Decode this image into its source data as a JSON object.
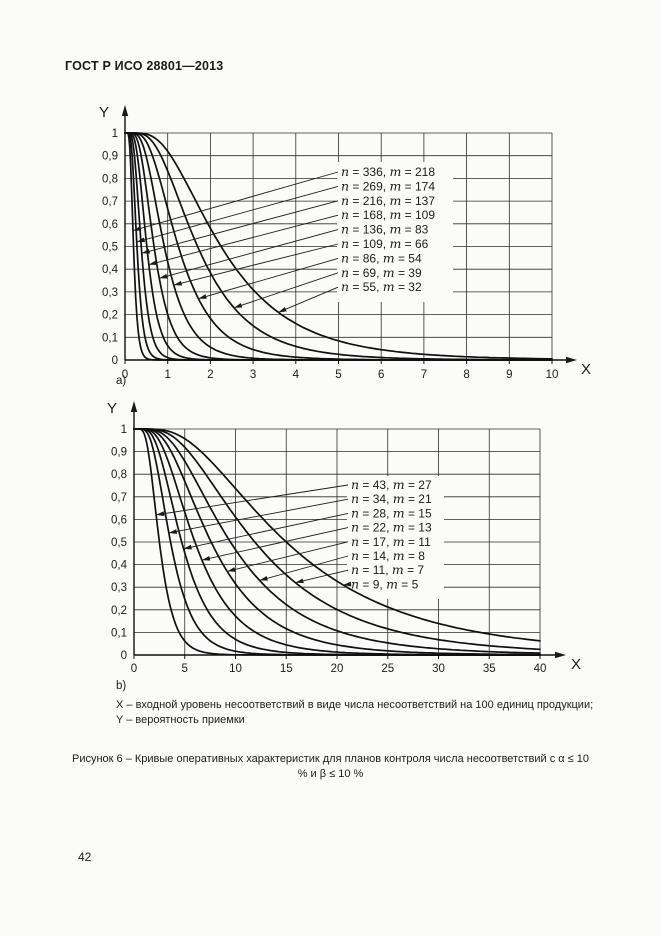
{
  "page": {
    "header": "ГОСТ Р ИСО 28801—2013",
    "note_x": "X – входной уровень несоответствий в виде числа несоответствий на 100 единиц продукции;",
    "note_y": "Y – вероятность приемки",
    "caption_line1": "Рисунок 6 – Кривые оперативных характеристик для планов контроля числа несоответствий с α ≤ 10",
    "caption_line2": "% и β ≤ 10 %",
    "page_number": "42"
  },
  "chart_data": [
    {
      "id": "a",
      "type": "line",
      "sub_label": "a)",
      "xlabel": "X",
      "ylabel": "Y",
      "xlim": [
        0,
        10
      ],
      "ylim": [
        0,
        1
      ],
      "grid": true,
      "legend_position": "inside-right",
      "x_ticks": [
        "0",
        "1",
        "2",
        "3",
        "4",
        "5",
        "6",
        "7",
        "8",
        "9",
        "10"
      ],
      "y_ticks": [
        "1",
        "0,9",
        "0,8",
        "0,7",
        "0,6",
        "0,5",
        "0,4",
        "0,3",
        "0,2",
        "0,1",
        "0"
      ],
      "series": [
        {
          "label": "n = 336, m = 218",
          "n": 336,
          "m": 218,
          "x_at_y05": 0.2,
          "shape_sigma": 0.38,
          "arrow_y": 0.57
        },
        {
          "label": "n = 269, m = 174",
          "n": 269,
          "m": 174,
          "x_at_y05": 0.28,
          "shape_sigma": 0.4,
          "arrow_y": 0.52
        },
        {
          "label": "n = 216, m = 137",
          "n": 216,
          "m": 137,
          "x_at_y05": 0.38,
          "shape_sigma": 0.42,
          "arrow_y": 0.47
        },
        {
          "label": "n = 168, m = 109",
          "n": 168,
          "m": 109,
          "x_at_y05": 0.51,
          "shape_sigma": 0.44,
          "arrow_y": 0.42
        },
        {
          "label": "n = 136, m = 83",
          "n": 136,
          "m": 83,
          "x_at_y05": 0.68,
          "shape_sigma": 0.46,
          "arrow_y": 0.36
        },
        {
          "label": "n = 109, m = 66",
          "n": 109,
          "m": 66,
          "x_at_y05": 0.92,
          "shape_sigma": 0.49,
          "arrow_y": 0.33
        },
        {
          "label": "n = 86, m = 54",
          "n": 86,
          "m": 54,
          "x_at_y05": 1.25,
          "shape_sigma": 0.52,
          "arrow_y": 0.27
        },
        {
          "label": "n = 69, m = 39",
          "n": 69,
          "m": 39,
          "x_at_y05": 1.7,
          "shape_sigma": 0.55,
          "arrow_y": 0.23
        },
        {
          "label": "n = 55, m = 32",
          "n": 55,
          "m": 32,
          "x_at_y05": 2.25,
          "shape_sigma": 0.58,
          "arrow_y": 0.21
        }
      ]
    },
    {
      "id": "b",
      "type": "line",
      "sub_label": "b)",
      "xlabel": "X",
      "ylabel": "Y",
      "xlim": [
        0,
        40
      ],
      "ylim": [
        0,
        1
      ],
      "grid": true,
      "legend_position": "inside-right",
      "x_ticks": [
        "0",
        "5",
        "10",
        "15",
        "20",
        "25",
        "30",
        "35",
        "40"
      ],
      "y_ticks": [
        "1",
        "0,9",
        "0,8",
        "0,7",
        "0,6",
        "0,5",
        "0,4",
        "0,3",
        "0,2",
        "0,1",
        "0"
      ],
      "series": [
        {
          "label": "n = 43, m = 27",
          "n": 43,
          "m": 27,
          "x_at_y05": 2.5,
          "shape_sigma": 0.45,
          "arrow_y": 0.62
        },
        {
          "label": "n = 34, m = 21",
          "n": 34,
          "m": 21,
          "x_at_y05": 3.6,
          "shape_sigma": 0.48,
          "arrow_y": 0.54
        },
        {
          "label": "n = 28, m = 15",
          "n": 28,
          "m": 15,
          "x_at_y05": 4.7,
          "shape_sigma": 0.51,
          "arrow_y": 0.47
        },
        {
          "label": "n = 22, m = 13",
          "n": 22,
          "m": 13,
          "x_at_y05": 6.0,
          "shape_sigma": 0.54,
          "arrow_y": 0.42
        },
        {
          "label": "n = 17, m = 11",
          "n": 17,
          "m": 11,
          "x_at_y05": 7.6,
          "shape_sigma": 0.57,
          "arrow_y": 0.37
        },
        {
          "label": "n = 14, m = 8",
          "n": 14,
          "m": 8,
          "x_at_y05": 9.5,
          "shape_sigma": 0.6,
          "arrow_y": 0.33
        },
        {
          "label": "n = 11, m = 7",
          "n": 11,
          "m": 7,
          "x_at_y05": 11.9,
          "shape_sigma": 0.62,
          "arrow_y": 0.32
        },
        {
          "label": "n = 9, m = 5",
          "n": 9,
          "m": 5,
          "x_at_y05": 15.0,
          "shape_sigma": 0.64,
          "arrow_y": 0.31
        }
      ]
    }
  ]
}
